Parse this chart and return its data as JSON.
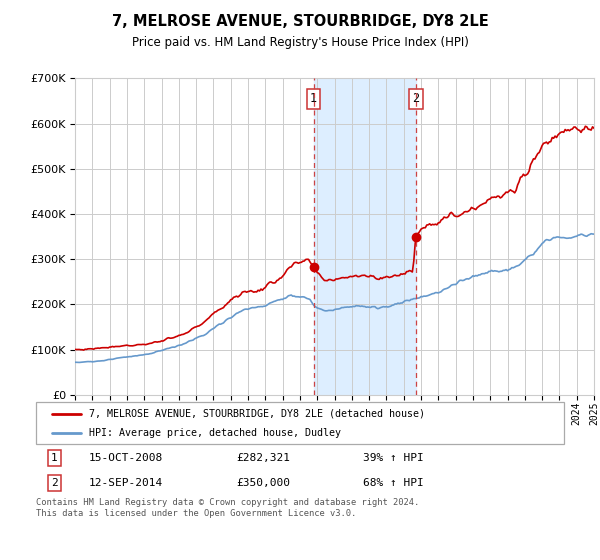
{
  "title": "7, MELROSE AVENUE, STOURBRIDGE, DY8 2LE",
  "subtitle": "Price paid vs. HM Land Registry's House Price Index (HPI)",
  "legend_line1": "7, MELROSE AVENUE, STOURBRIDGE, DY8 2LE (detached house)",
  "legend_line2": "HPI: Average price, detached house, Dudley",
  "annotation_footer": "Contains HM Land Registry data © Crown copyright and database right 2024.\nThis data is licensed under the Open Government Licence v3.0.",
  "sale1_label": "1",
  "sale1_date": "15-OCT-2008",
  "sale1_price": "£282,321",
  "sale1_hpi": "39% ↑ HPI",
  "sale2_label": "2",
  "sale2_date": "12-SEP-2014",
  "sale2_price": "£350,000",
  "sale2_hpi": "68% ↑ HPI",
  "sale1_year": 2008.79,
  "sale2_year": 2014.71,
  "sale1_value": 282321,
  "sale2_value": 350000,
  "red_color": "#cc0000",
  "blue_color": "#6699cc",
  "shade_color": "#ddeeff",
  "grid_color": "#cccccc",
  "bg_color": "#ffffff",
  "ylim": [
    0,
    700000
  ],
  "xlim_start": 1995,
  "xlim_end": 2025
}
